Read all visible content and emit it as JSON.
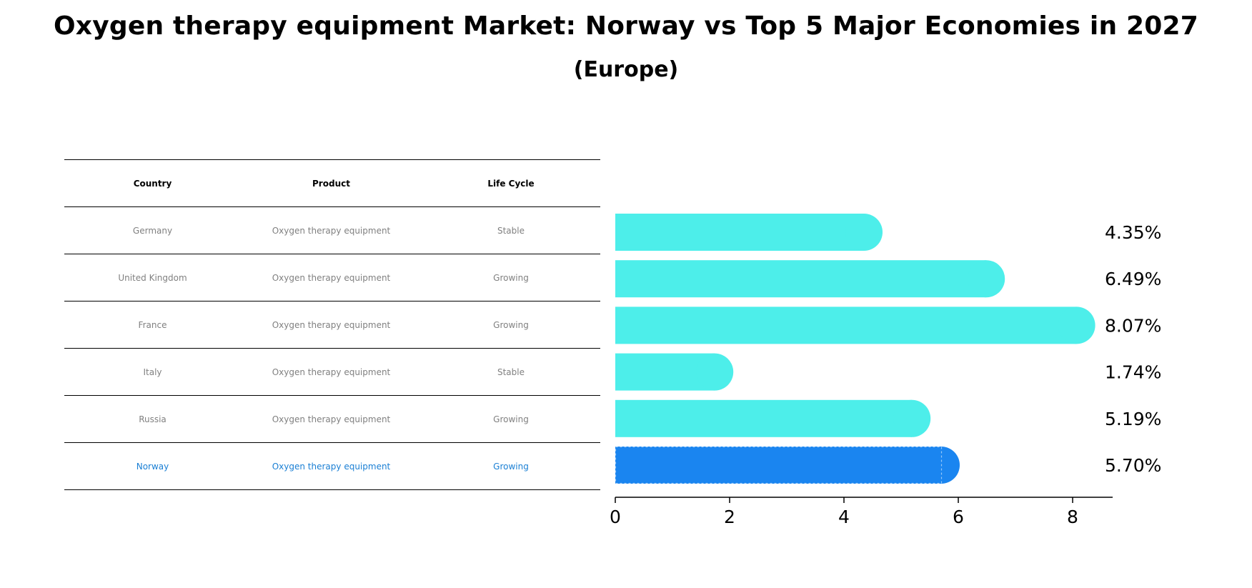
{
  "title": "Oxygen therapy equipment Market: Norway vs Top 5 Major Economies in 2027",
  "subtitle": "(Europe)",
  "table": {
    "headers": [
      "Country",
      "Product",
      "Life Cycle"
    ],
    "rows": [
      {
        "country": "Germany",
        "product": "Oxygen therapy equipment",
        "life_cycle": "Stable"
      },
      {
        "country": "United Kingdom",
        "product": "Oxygen therapy equipment",
        "life_cycle": "Growing"
      },
      {
        "country": "France",
        "product": "Oxygen therapy equipment",
        "life_cycle": "Growing"
      },
      {
        "country": "Italy",
        "product": "Oxygen therapy equipment",
        "life_cycle": "Stable"
      },
      {
        "country": "Russia",
        "product": "Oxygen therapy equipment",
        "life_cycle": "Growing"
      },
      {
        "country": "Norway",
        "product": "Oxygen therapy equipment",
        "life_cycle": "Growing"
      }
    ]
  },
  "colors": {
    "bar": "#4deeea",
    "highlight": "#1a85f0",
    "highlight_text": "#1a7fd4",
    "muted_text": "#808080"
  },
  "chart_data": {
    "type": "bar",
    "orientation": "horizontal",
    "categories": [
      "Germany",
      "United Kingdom",
      "France",
      "Italy",
      "Russia",
      "Norway"
    ],
    "values": [
      4.35,
      6.49,
      8.07,
      1.74,
      5.19,
      5.7
    ],
    "value_labels": [
      "4.35%",
      "6.49%",
      "8.07%",
      "1.74%",
      "5.19%",
      "5.70%"
    ],
    "highlight_category": "Norway",
    "xlim": [
      0,
      8.5
    ],
    "xticks": [
      0,
      2,
      4,
      6,
      8
    ],
    "xtick_labels": [
      "0",
      "2",
      "4",
      "6",
      "8"
    ],
    "title": "",
    "xlabel": "",
    "ylabel": "",
    "grid": false
  }
}
